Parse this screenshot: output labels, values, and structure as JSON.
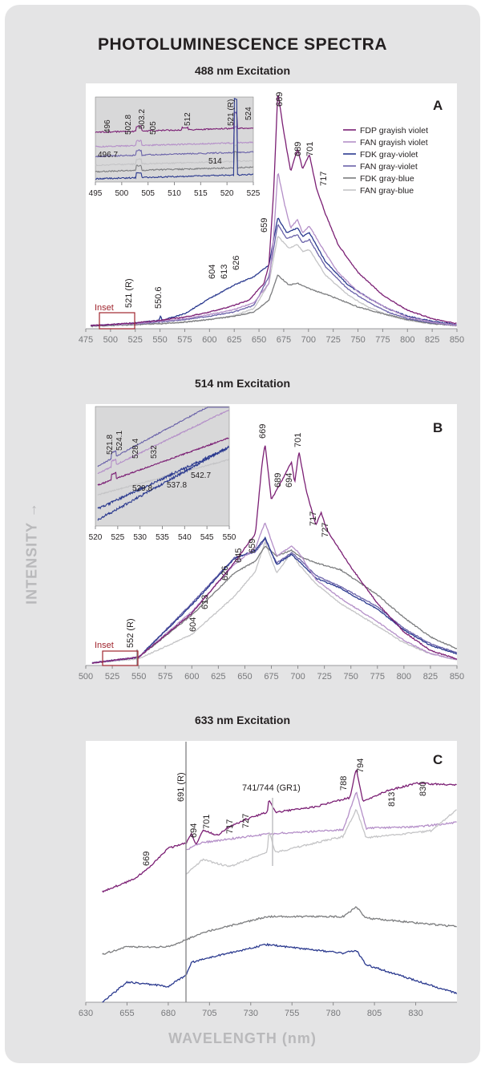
{
  "figure": {
    "title": "PHOTOLUMINESCENCE SPECTRA",
    "y_axis_label": "INTENSITY →",
    "x_axis_label": "WAVELENGTH (nm)"
  },
  "chart_data": [
    {
      "type": "line",
      "panel_letter": "A",
      "title": "488 nm Excitation",
      "xlim": [
        475,
        850
      ],
      "xticks": [
        475,
        500,
        525,
        550,
        575,
        600,
        625,
        650,
        675,
        700,
        725,
        750,
        775,
        800,
        825,
        850
      ],
      "legend_position": "top-right",
      "series": [
        {
          "name": "FDP grayish violet",
          "color": "#7b1f74",
          "points": [
            [
              480,
              2
            ],
            [
              500,
              3
            ],
            [
              525,
              5
            ],
            [
              550,
              8
            ],
            [
              575,
              12
            ],
            [
              600,
              18
            ],
            [
              620,
              24
            ],
            [
              640,
              32
            ],
            [
              655,
              52
            ],
            [
              660,
              74
            ],
            [
              665,
              165
            ],
            [
              669,
              280
            ],
            [
              675,
              232
            ],
            [
              682,
              185
            ],
            [
              689,
              212
            ],
            [
              694,
              188
            ],
            [
              701,
              205
            ],
            [
              708,
              165
            ],
            [
              717,
              135
            ],
            [
              730,
              98
            ],
            [
              750,
              65
            ],
            [
              775,
              38
            ],
            [
              800,
              20
            ],
            [
              825,
              10
            ],
            [
              850,
              4
            ]
          ]
        },
        {
          "name": "FAN grayish violet",
          "color": "#b48fc8",
          "points": [
            [
              480,
              2
            ],
            [
              500,
              3
            ],
            [
              525,
              4
            ],
            [
              550,
              7
            ],
            [
              575,
              10
            ],
            [
              600,
              15
            ],
            [
              625,
              21
            ],
            [
              645,
              29
            ],
            [
              660,
              52
            ],
            [
              665,
              110
            ],
            [
              669,
              185
            ],
            [
              676,
              145
            ],
            [
              682,
              118
            ],
            [
              689,
              128
            ],
            [
              694,
              112
            ],
            [
              701,
              120
            ],
            [
              717,
              88
            ],
            [
              730,
              65
            ],
            [
              750,
              42
            ],
            [
              775,
              25
            ],
            [
              800,
              12
            ],
            [
              825,
              6
            ],
            [
              850,
              2
            ]
          ]
        },
        {
          "name": "FDK gray-violet",
          "color": "#2b3a8f",
          "points": [
            [
              480,
              2
            ],
            [
              500,
              3
            ],
            [
              525,
              5
            ],
            [
              549,
              8
            ],
            [
              550.6,
              14
            ],
            [
              552,
              8
            ],
            [
              575,
              16
            ],
            [
              600,
              34
            ],
            [
              625,
              50
            ],
            [
              645,
              60
            ],
            [
              660,
              74
            ],
            [
              669,
              130
            ],
            [
              678,
              112
            ],
            [
              689,
              118
            ],
            [
              694,
              108
            ],
            [
              701,
              112
            ],
            [
              717,
              78
            ],
            [
              740,
              50
            ],
            [
              760,
              35
            ],
            [
              780,
              22
            ],
            [
              800,
              13
            ],
            [
              825,
              7
            ],
            [
              850,
              3
            ]
          ]
        },
        {
          "name": "FAN gray-violet",
          "color": "#6a62a9",
          "points": [
            [
              480,
              2
            ],
            [
              500,
              3
            ],
            [
              525,
              4
            ],
            [
              550,
              6
            ],
            [
              575,
              9
            ],
            [
              600,
              13
            ],
            [
              625,
              18
            ],
            [
              645,
              26
            ],
            [
              660,
              60
            ],
            [
              669,
              122
            ],
            [
              678,
              105
            ],
            [
              689,
              110
            ],
            [
              694,
              100
            ],
            [
              701,
              104
            ],
            [
              717,
              72
            ],
            [
              740,
              45
            ],
            [
              760,
              30
            ],
            [
              780,
              18
            ],
            [
              800,
              10
            ],
            [
              825,
              5
            ],
            [
              850,
              2
            ]
          ]
        },
        {
          "name": "FDK gray-blue",
          "color": "#7c7d7f",
          "points": [
            [
              480,
              1
            ],
            [
              500,
              2
            ],
            [
              525,
              3
            ],
            [
              550,
              4
            ],
            [
              575,
              6
            ],
            [
              600,
              9
            ],
            [
              625,
              13
            ],
            [
              645,
              18
            ],
            [
              660,
              32
            ],
            [
              669,
              62
            ],
            [
              680,
              50
            ],
            [
              689,
              52
            ],
            [
              700,
              46
            ],
            [
              720,
              38
            ],
            [
              750,
              24
            ],
            [
              775,
              16
            ],
            [
              800,
              9
            ],
            [
              825,
              4
            ],
            [
              850,
              2
            ]
          ]
        },
        {
          "name": "FAN gray-blue",
          "color": "#c4c4c6",
          "points": [
            [
              480,
              1
            ],
            [
              500,
              2
            ],
            [
              525,
              3
            ],
            [
              550,
              4
            ],
            [
              575,
              6
            ],
            [
              600,
              9
            ],
            [
              625,
              14
            ],
            [
              645,
              22
            ],
            [
              660,
              52
            ],
            [
              669,
              108
            ],
            [
              680,
              94
            ],
            [
              689,
              98
            ],
            [
              694,
              90
            ],
            [
              701,
              92
            ],
            [
              717,
              62
            ],
            [
              740,
              38
            ],
            [
              760,
              24
            ],
            [
              780,
              14
            ],
            [
              800,
              8
            ],
            [
              825,
              4
            ],
            [
              850,
              2
            ]
          ]
        }
      ],
      "peak_labels": [
        "669",
        "689",
        "701",
        "717",
        "659",
        "626",
        "613",
        "604",
        "550.6",
        "521 (R)"
      ],
      "inset": {
        "label": "Inset",
        "xlim": [
          495,
          525
        ],
        "xticks": [
          495,
          500,
          505,
          510,
          515,
          520,
          525
        ],
        "peak_labels": [
          "496",
          "502.8",
          "503.2",
          "505",
          "512",
          "521 (R)",
          "524",
          "496.7",
          "514"
        ]
      }
    },
    {
      "type": "line",
      "panel_letter": "B",
      "title": "514 nm Excitation",
      "xlim": [
        500,
        850
      ],
      "xticks": [
        500,
        525,
        550,
        575,
        600,
        625,
        650,
        675,
        700,
        725,
        750,
        775,
        800,
        825,
        850
      ],
      "peak_labels": [
        "669",
        "689",
        "694",
        "701",
        "717",
        "727",
        "659",
        "645",
        "626",
        "613",
        "604",
        "552 (R)"
      ],
      "inset": {
        "label": "Inset",
        "xlim": [
          520,
          550
        ],
        "xticks": [
          520,
          525,
          530,
          535,
          540,
          545,
          550
        ],
        "peak_labels": [
          "521.8",
          "524.1",
          "528.4",
          "532",
          "529.8",
          "537.8",
          "542.7"
        ]
      }
    },
    {
      "type": "line",
      "panel_letter": "C",
      "title": "633 nm Excitation",
      "xlim": [
        630,
        855
      ],
      "xticks": [
        630,
        655,
        680,
        705,
        730,
        755,
        780,
        805,
        830
      ],
      "peak_labels": [
        "669",
        "691 (R)",
        "694",
        "701",
        "717",
        "727",
        "741/744 (GR1)",
        "788",
        "794",
        "813",
        "830"
      ]
    }
  ]
}
